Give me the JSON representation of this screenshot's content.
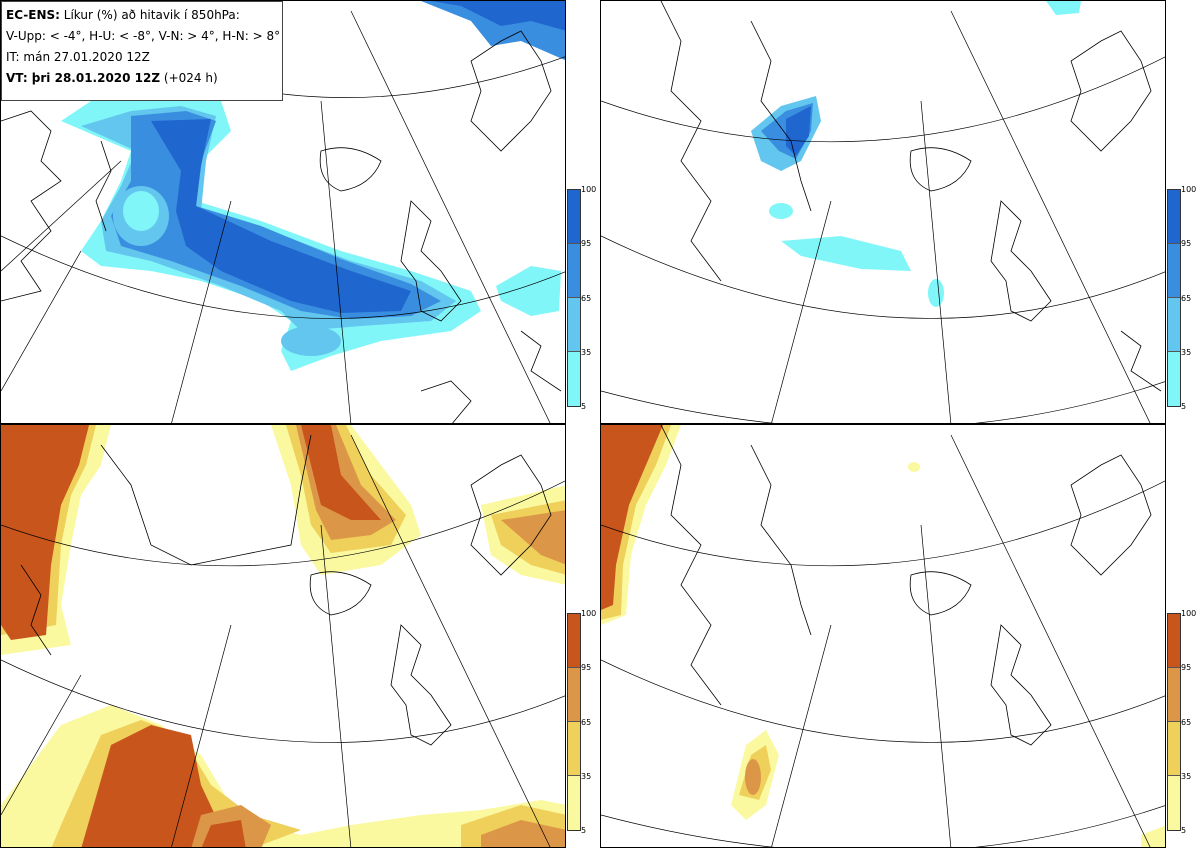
{
  "info": {
    "line1_bold": "EC-ENS:",
    "line1_rest": "Líkur (%) að hitavik í 850hPa:",
    "line2": "V-Upp: < -4°, H-U: < -8°, V-N: > 4°, H-N: > 8°",
    "line3": "IT: mán 27.01.2020 12Z",
    "line4_bold": "VT: þri 28.01.2020 12Z",
    "line4_rest": "(+024 h)"
  },
  "colorbars": {
    "ticks": [
      "100",
      "95",
      "65",
      "35",
      "5"
    ],
    "cold_colors": [
      "#1f66cf",
      "#3a8ee0",
      "#62c6ee",
      "#80f6f9"
    ],
    "warm_colors": [
      "#c8551c",
      "#dc9648",
      "#eed05a",
      "#fbf9a0"
    ]
  },
  "panels": [
    {
      "name": "V-Upp",
      "threshold": "< -4°",
      "scale": "cold"
    },
    {
      "name": "H-U",
      "threshold": "< -8°",
      "scale": "cold"
    },
    {
      "name": "V-N",
      "threshold": "> 4°",
      "scale": "warm"
    },
    {
      "name": "H-N",
      "threshold": "> 8°",
      "scale": "warm"
    }
  ]
}
